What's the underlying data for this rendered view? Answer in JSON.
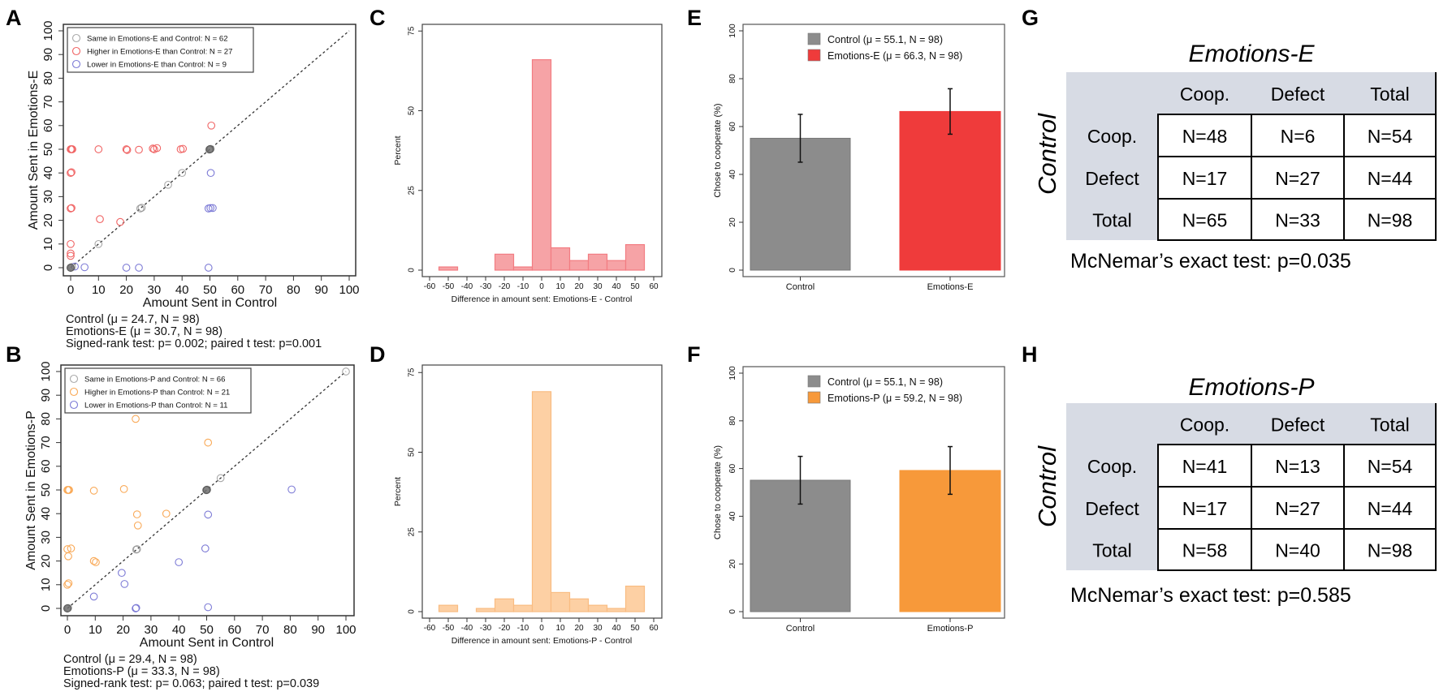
{
  "panel_labels": [
    "A",
    "B",
    "C",
    "D",
    "E",
    "F",
    "G",
    "H"
  ],
  "colors": {
    "same": "#9a9a9a",
    "higher_e": "#f06464",
    "higher_p": "#f9a957",
    "lower": "#7d7bd6",
    "hist_e_fill": "#f6a3a6",
    "hist_e_stroke": "#f27c82",
    "hist_p_fill": "#fdd0a4",
    "hist_p_stroke": "#f9bc82",
    "bar_control": "#8c8c8c",
    "bar_e": "#ef3b3b",
    "bar_p": "#f7993a",
    "table_header_bg": "#d7dbe4",
    "control_axis_label": "#bdbdbd"
  },
  "chart_data": [
    {
      "type": "scatter",
      "xlabel": "Amount Sent in Control",
      "ylabel": "Amount Sent in Emotions-E",
      "xlim": [
        0,
        100
      ],
      "ylim": [
        0,
        100
      ],
      "xticks": [
        "0",
        "10",
        "20",
        "30",
        "40",
        "50",
        "60",
        "70",
        "80",
        "90",
        "100"
      ],
      "yticks": [
        "0",
        "10",
        "20",
        "30",
        "40",
        "50",
        "60",
        "70",
        "80",
        "90",
        "100"
      ],
      "reference_line": "y = x (dashed)",
      "legend_position": "top-left",
      "series": [
        {
          "name": "Same in Emotions-E and Control: N = 62",
          "color_key": "same",
          "points": [
            [
              0,
              0
            ],
            [
              0,
              0
            ],
            [
              0.5,
              0.3
            ],
            [
              10,
              10
            ],
            [
              25,
              25
            ],
            [
              25.5,
              25.3
            ],
            [
              35,
              35
            ],
            [
              40,
              40
            ],
            [
              50,
              50
            ],
            [
              50,
              50
            ],
            [
              50.3,
              50.2
            ],
            [
              49.7,
              49.8
            ]
          ]
        },
        {
          "name": "Higher in Emotions-E than Control: N = 27",
          "color_key": "higher_e",
          "points": [
            [
              0,
              50
            ],
            [
              0.3,
              50
            ],
            [
              0.6,
              50
            ],
            [
              0,
              40
            ],
            [
              0.3,
              40.3
            ],
            [
              0,
              25
            ],
            [
              0.3,
              25.2
            ],
            [
              0,
              10
            ],
            [
              0,
              6
            ],
            [
              0,
              5
            ],
            [
              10,
              50
            ],
            [
              20,
              50
            ],
            [
              20.3,
              49.7
            ],
            [
              24.5,
              49.8
            ],
            [
              29.5,
              50.3
            ],
            [
              30,
              50
            ],
            [
              31,
              50.5
            ],
            [
              39.5,
              50
            ],
            [
              40.3,
              50.2
            ],
            [
              50.5,
              60
            ],
            [
              10.5,
              20.5
            ],
            [
              17.8,
              19.3
            ]
          ]
        },
        {
          "name": "Lower in Emotions-E than Control: N =  9",
          "color_key": "lower",
          "points": [
            [
              1.5,
              0.5
            ],
            [
              5,
              0.2
            ],
            [
              20,
              0
            ],
            [
              24.5,
              0
            ],
            [
              49.5,
              0
            ],
            [
              50.3,
              40
            ],
            [
              49.5,
              25
            ],
            [
              50.2,
              25.2
            ],
            [
              51,
              25.2
            ]
          ]
        }
      ],
      "stats": [
        "Control (μ = 24.7, N = 98)",
        "Emotions-E (μ = 30.7, N = 98)",
        "Signed-rank test: p= 0.002; paired t test: p=0.001"
      ]
    },
    {
      "type": "scatter",
      "xlabel": "Amount Sent in Control",
      "ylabel": "Amount Sent in Emotions-P",
      "xlim": [
        0,
        100
      ],
      "ylim": [
        0,
        100
      ],
      "xticks": [
        "0",
        "10",
        "20",
        "30",
        "40",
        "50",
        "60",
        "70",
        "80",
        "90",
        "100"
      ],
      "yticks": [
        "0",
        "10",
        "20",
        "30",
        "40",
        "50",
        "60",
        "70",
        "80",
        "90",
        "100"
      ],
      "reference_line": "y = x (dashed)",
      "legend_position": "top-left",
      "series": [
        {
          "name": "Same in Emotions-P and Control: N = 66",
          "color_key": "same",
          "points": [
            [
              0,
              0
            ],
            [
              0.3,
              0.2
            ],
            [
              25,
              25
            ],
            [
              24.7,
              24.8
            ],
            [
              50,
              50
            ],
            [
              50.2,
              50.2
            ],
            [
              49.8,
              49.9
            ],
            [
              55,
              55
            ],
            [
              100,
              100
            ]
          ]
        },
        {
          "name": "Higher in Emotions-P than Control: N = 21",
          "color_key": "higher_p",
          "points": [
            [
              0,
              50
            ],
            [
              0.3,
              50
            ],
            [
              0.6,
              50
            ],
            [
              0,
              25
            ],
            [
              1.3,
              25.3
            ],
            [
              0.3,
              22
            ],
            [
              0,
              10
            ],
            [
              0.4,
              10.6
            ],
            [
              9.5,
              20
            ],
            [
              10.2,
              19.5
            ],
            [
              9.5,
              49.7
            ],
            [
              20.3,
              50.4
            ],
            [
              24.5,
              80
            ],
            [
              50.5,
              70
            ],
            [
              25,
              39.7
            ],
            [
              25.3,
              35
            ],
            [
              35.5,
              40
            ]
          ]
        },
        {
          "name": "Lower in Emotions-P than Control: N = 11",
          "color_key": "lower",
          "points": [
            [
              80.5,
              50.2
            ],
            [
              50.5,
              39.6
            ],
            [
              49.5,
              25.3
            ],
            [
              40,
              19.5
            ],
            [
              19.5,
              15
            ],
            [
              20.5,
              10.3
            ],
            [
              9.5,
              5
            ],
            [
              24.5,
              0
            ],
            [
              24.7,
              0.2
            ],
            [
              50.5,
              0.5
            ]
          ]
        }
      ],
      "stats": [
        "Control (μ = 29.4, N = 98)",
        "Emotions-P (μ = 33.3, N = 98)",
        "Signed-rank test: p= 0.063; paired t test: p=0.039"
      ]
    },
    {
      "type": "bar",
      "subtype": "histogram",
      "xlabel": "Difference in amount sent: Emotions-E - Control",
      "ylabel": "Percent",
      "bin_width": 10,
      "bin_centers": [
        -50,
        -40,
        -30,
        -20,
        -10,
        0,
        10,
        20,
        30,
        40,
        50
      ],
      "values": [
        1,
        0,
        0,
        5,
        1,
        66,
        7,
        3,
        5,
        3,
        8
      ],
      "xlim": [
        -60,
        60
      ],
      "ylim": [
        0,
        75
      ],
      "xticks": [
        "-60",
        "-50",
        "-40",
        "-30",
        "-20",
        "-10",
        "0",
        "10",
        "20",
        "30",
        "40",
        "50",
        "60"
      ],
      "yticks": [
        "0",
        "25",
        "50",
        "75"
      ],
      "fill_key": "hist_e_fill",
      "stroke_key": "hist_e_stroke"
    },
    {
      "type": "bar",
      "subtype": "histogram",
      "xlabel": "Difference in amount sent: Emotions-P - Control",
      "ylabel": "Percent",
      "bin_width": 10,
      "bin_centers": [
        -50,
        -40,
        -30,
        -20,
        -10,
        0,
        10,
        20,
        30,
        40,
        50
      ],
      "values": [
        2,
        0,
        1,
        4,
        2,
        69,
        6,
        4,
        2,
        1,
        8
      ],
      "xlim": [
        -60,
        60
      ],
      "ylim": [
        0,
        75
      ],
      "xticks": [
        "-60",
        "-50",
        "-40",
        "-30",
        "-20",
        "-10",
        "0",
        "10",
        "20",
        "30",
        "40",
        "50",
        "60"
      ],
      "yticks": [
        "0",
        "25",
        "50",
        "75"
      ],
      "fill_key": "hist_p_fill",
      "stroke_key": "hist_p_stroke"
    },
    {
      "type": "bar",
      "ylabel": "Chose to cooperate (%)",
      "categories": [
        "Control",
        "Emotions-E"
      ],
      "values": [
        55.1,
        66.3
      ],
      "error_low": [
        45.1,
        56.8
      ],
      "error_high": [
        65.1,
        75.8
      ],
      "ylim": [
        0,
        100
      ],
      "yticks": [
        "0",
        "20",
        "40",
        "60",
        "80",
        "100"
      ],
      "legend": [
        "Control (μ = 55.1, N = 98)",
        "Emotions-E (μ = 66.3, N = 98)"
      ],
      "legend_position": "top-center",
      "color_keys": [
        "bar_control",
        "bar_e"
      ]
    },
    {
      "type": "bar",
      "ylabel": "Chose to cooperate (%)",
      "categories": [
        "Control",
        "Emotions-P"
      ],
      "values": [
        55.1,
        59.2
      ],
      "error_low": [
        45.1,
        49.2
      ],
      "error_high": [
        65.1,
        69.2
      ],
      "ylim": [
        0,
        100
      ],
      "yticks": [
        "0",
        "20",
        "40",
        "60",
        "80",
        "100"
      ],
      "legend": [
        "Control (μ = 55.1, N = 98)",
        "Emotions-P (μ = 59.2, N = 98)"
      ],
      "legend_position": "top-center",
      "color_keys": [
        "bar_control",
        "bar_p"
      ]
    }
  ],
  "tables": [
    {
      "title": "Emotions-E",
      "title_color_key": "bar_e",
      "row_axis_label": "Control",
      "columns": [
        "Coop.",
        "Defect",
        "Total"
      ],
      "rows": [
        {
          "label": "Coop.",
          "cells": [
            "N=48",
            "N=6",
            "N=54"
          ]
        },
        {
          "label": "Defect",
          "cells": [
            "N=17",
            "N=27",
            "N=44"
          ]
        },
        {
          "label": "Total",
          "cells": [
            "N=65",
            "N=33",
            "N=98"
          ]
        }
      ],
      "test": "McNemar’s exact test: p=0.035"
    },
    {
      "title": "Emotions-P",
      "title_color_key": "bar_p",
      "row_axis_label": "Control",
      "columns": [
        "Coop.",
        "Defect",
        "Total"
      ],
      "rows": [
        {
          "label": "Coop.",
          "cells": [
            "N=41",
            "N=13",
            "N=54"
          ]
        },
        {
          "label": "Defect",
          "cells": [
            "N=17",
            "N=27",
            "N=44"
          ]
        },
        {
          "label": "Total",
          "cells": [
            "N=58",
            "N=40",
            "N=98"
          ]
        }
      ],
      "test": "McNemar’s exact test: p=0.585"
    }
  ]
}
